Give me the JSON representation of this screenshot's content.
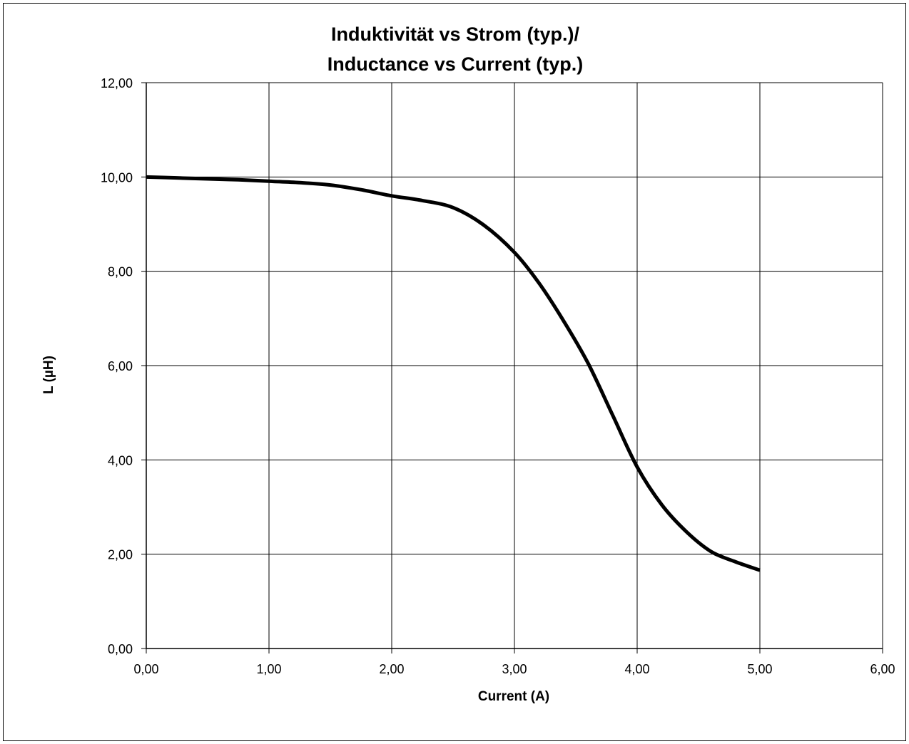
{
  "chart_data": {
    "type": "line",
    "title": "Induktivität vs Strom (typ.)/",
    "subtitle": "Inductance vs Current (typ.)",
    "xlabel": "Current (A)",
    "ylabel": "L (µH)",
    "xlim": [
      0,
      6
    ],
    "ylim": [
      0,
      12
    ],
    "x_ticks": [
      0,
      1,
      2,
      3,
      4,
      5,
      6
    ],
    "y_ticks": [
      0,
      2,
      4,
      6,
      8,
      10,
      12
    ],
    "x_tick_labels": [
      "0,00",
      "1,00",
      "2,00",
      "3,00",
      "4,00",
      "5,00",
      "6,00"
    ],
    "y_tick_labels": [
      "0,00",
      "2,00",
      "4,00",
      "6,00",
      "8,00",
      "10,00",
      "12,00"
    ],
    "grid": true,
    "series": [
      {
        "color": "#000000",
        "x": [
          0.0,
          0.25,
          0.5,
          0.75,
          1.0,
          1.25,
          1.5,
          1.75,
          2.0,
          2.25,
          2.5,
          2.75,
          3.0,
          3.2,
          3.4,
          3.6,
          3.8,
          4.0,
          4.2,
          4.4,
          4.6,
          4.8,
          5.0
        ],
        "y": [
          10.0,
          9.98,
          9.96,
          9.94,
          9.91,
          9.88,
          9.83,
          9.73,
          9.6,
          9.5,
          9.35,
          8.98,
          8.4,
          7.75,
          6.95,
          6.05,
          4.95,
          3.85,
          3.05,
          2.48,
          2.06,
          1.84,
          1.66
        ]
      }
    ]
  }
}
